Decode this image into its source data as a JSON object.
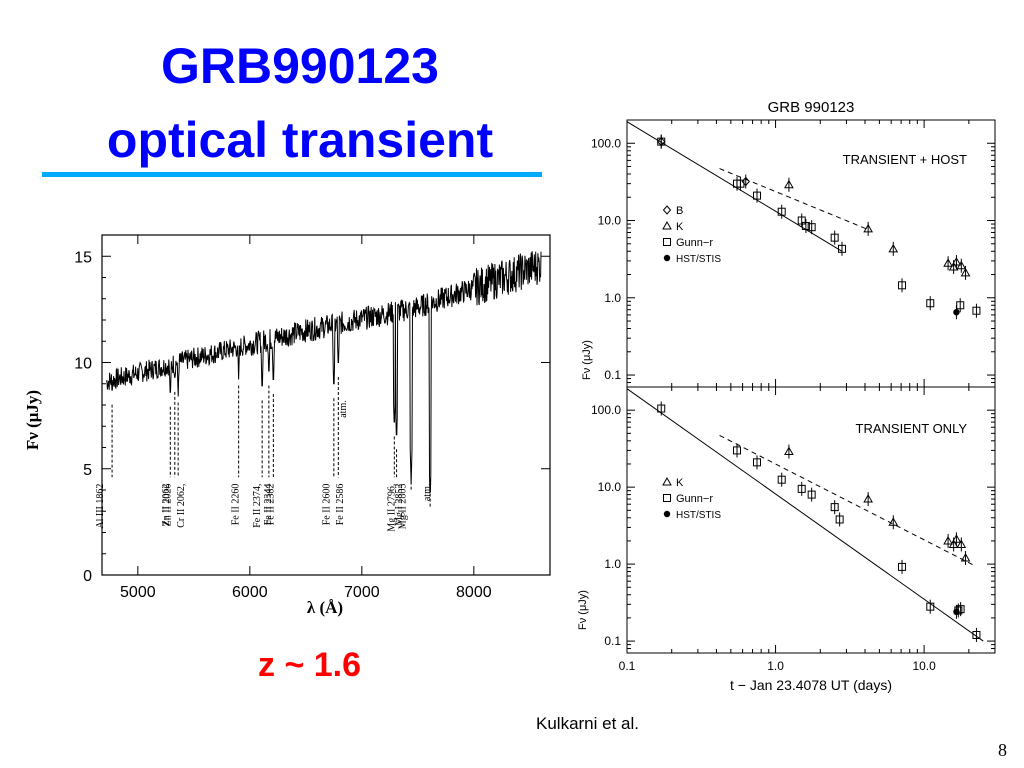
{
  "slide": {
    "title_line1": "GRB990123",
    "title_line2": "optical transient",
    "redshift": "z ~ 1.6",
    "credit": "Kulkarni et al.",
    "page_number": "8",
    "title_color": "#0000ff",
    "underline_color": "#00aaff",
    "redshift_color": "#ff0000"
  },
  "chart_data": [
    {
      "type": "line",
      "title": "",
      "xlabel": "λ (Å)",
      "ylabel": "Fν (μJy)",
      "xlim": [
        4680,
        8680
      ],
      "ylim": [
        0,
        16
      ],
      "xticks": [
        "5000",
        "6000",
        "7000",
        "8000"
      ],
      "yticks": [
        "0",
        "5",
        "10",
        "15"
      ],
      "continuum": {
        "x": [
          4720,
          5500,
          6500,
          7500,
          8600
        ],
        "y": [
          9.1,
          10.2,
          11.5,
          12.6,
          14.6
        ]
      },
      "absorption_lines": [
        {
          "label": "Al III 1862",
          "wavelength": 4770,
          "depth": 8.3
        },
        {
          "label": "Zn II 2026",
          "wavelength": 5290,
          "depth": 8.2
        },
        {
          "label": "Cr II 2062,",
          "wavelength": 5330,
          "depth": 8.9
        },
        {
          "label": "Zn II 2062",
          "wavelength": 5360,
          "depth": 8.4
        },
        {
          "label": "Fe II 2260",
          "wavelength": 5900,
          "depth": 9.2
        },
        {
          "label": "Fe II 2344",
          "wavelength": 6110,
          "depth": 8.5
        },
        {
          "label": "Fe II 2374,",
          "wavelength": 6170,
          "depth": 9.2
        },
        {
          "label": "Fe II 2382",
          "wavelength": 6210,
          "depth": 8.8
        },
        {
          "label": "Fe II 2586",
          "wavelength": 6750,
          "depth": 8.6
        },
        {
          "label": "Fe II 2600",
          "wavelength": 6790,
          "depth": 9.6
        },
        {
          "label": "Mg II 2796,",
          "wavelength": 7290,
          "depth": 6.8
        },
        {
          "label": "Mg II 2803",
          "wavelength": 7310,
          "depth": 6.2
        },
        {
          "label": "Mg I 2852",
          "wavelength": 7440,
          "depth": 4.3
        },
        {
          "label": "atm.",
          "wavelength": 7610,
          "depth": 3.5
        }
      ],
      "annotations": [
        {
          "text": "atm.",
          "x": 6860,
          "y": 7.4
        }
      ]
    },
    {
      "type": "scatter",
      "title": "GRB 990123",
      "panels": [
        {
          "label": "TRANSIENT + HOST",
          "ylabel": "Fν (μJy)",
          "xscale": "log",
          "yscale": "log",
          "xlim": [
            0.1,
            30
          ],
          "ylim": [
            0.07,
            200
          ],
          "yticks": [
            "0.1",
            "1.0",
            "10.0",
            "100.0"
          ],
          "legend": [
            {
              "marker": "diamond",
              "label": "B"
            },
            {
              "marker": "triangle",
              "label": "K"
            },
            {
              "marker": "square",
              "label": "Gunn−r"
            },
            {
              "marker": "circle",
              "label": "HST/STIS"
            }
          ],
          "fit_line": {
            "x": [
              0.1,
              2.8
            ],
            "y": [
              190,
              4
            ]
          },
          "dashed_line": {
            "x": [
              0.42,
              4.3
            ],
            "y": [
              47,
              7.5
            ]
          },
          "series": [
            {
              "name": "B",
              "marker": "diamond",
              "points": [
                [
                  0.17,
                  105
                ],
                [
                  0.63,
                  32
                ]
              ]
            },
            {
              "name": "K",
              "marker": "triangle",
              "points": [
                [
                  1.23,
                  29
                ],
                [
                  4.2,
                  7.8
                ],
                [
                  6.2,
                  4.3
                ],
                [
                  14.5,
                  2.8
                ],
                [
                  15.8,
                  2.5
                ],
                [
                  16.5,
                  2.9
                ],
                [
                  17.8,
                  2.6
                ],
                [
                  19.0,
                  2.1
                ]
              ]
            },
            {
              "name": "Gunn−r",
              "marker": "square",
              "points": [
                [
                  0.17,
                  105
                ],
                [
                  0.55,
                  30
                ],
                [
                  0.58,
                  30
                ],
                [
                  0.75,
                  21
                ],
                [
                  1.1,
                  13
                ],
                [
                  1.5,
                  10
                ],
                [
                  1.6,
                  8.5
                ],
                [
                  1.75,
                  8.2
                ],
                [
                  2.5,
                  6
                ],
                [
                  2.8,
                  4.3
                ],
                [
                  7.1,
                  1.45
                ],
                [
                  11.0,
                  0.85
                ],
                [
                  17.5,
                  0.8
                ],
                [
                  22.5,
                  0.68
                ]
              ]
            },
            {
              "name": "HST/STIS",
              "marker": "circle",
              "points": [
                [
                  16.5,
                  0.65
                ]
              ]
            }
          ]
        },
        {
          "label": "TRANSIENT ONLY",
          "ylabel": "Fν (μJy)",
          "xlabel": "t − Jan 23.4078 UT (days)",
          "xscale": "log",
          "yscale": "log",
          "xlim": [
            0.1,
            30
          ],
          "ylim": [
            0.07,
            200
          ],
          "xticks": [
            "0.1",
            "1.0",
            "10.0"
          ],
          "yticks": [
            "0.1",
            "1.0",
            "10.0",
            "100.0"
          ],
          "legend": [
            {
              "marker": "triangle",
              "label": "K"
            },
            {
              "marker": "square",
              "label": "Gunn−r"
            },
            {
              "marker": "circle",
              "label": "HST/STIS"
            }
          ],
          "fit_line": {
            "x": [
              0.1,
              25
            ],
            "y": [
              190,
              0.1
            ]
          },
          "dashed_line": {
            "x": [
              0.42,
              22
            ],
            "y": [
              47,
              0.95
            ]
          },
          "series": [
            {
              "name": "K",
              "marker": "triangle",
              "points": [
                [
                  1.23,
                  29
                ],
                [
                  4.2,
                  7
                ],
                [
                  6.2,
                  3.5
                ],
                [
                  14.5,
                  2
                ],
                [
                  15.8,
                  1.8
                ],
                [
                  16.5,
                  2.1
                ],
                [
                  17.8,
                  1.8
                ],
                [
                  19.0,
                  1.2
                ]
              ]
            },
            {
              "name": "Gunn−r",
              "marker": "square",
              "points": [
                [
                  0.17,
                  105
                ],
                [
                  0.55,
                  30
                ],
                [
                  0.75,
                  21
                ],
                [
                  1.1,
                  12.5
                ],
                [
                  1.5,
                  9.5
                ],
                [
                  1.75,
                  8
                ],
                [
                  2.5,
                  5.5
                ],
                [
                  2.7,
                  3.8
                ],
                [
                  7.1,
                  0.92
                ],
                [
                  11.0,
                  0.28
                ],
                [
                  17.0,
                  0.25
                ],
                [
                  17.6,
                  0.26
                ],
                [
                  22.5,
                  0.12
                ]
              ]
            },
            {
              "name": "HST/STIS",
              "marker": "circle",
              "points": [
                [
                  16.5,
                  0.24
                ]
              ]
            }
          ]
        }
      ]
    }
  ]
}
